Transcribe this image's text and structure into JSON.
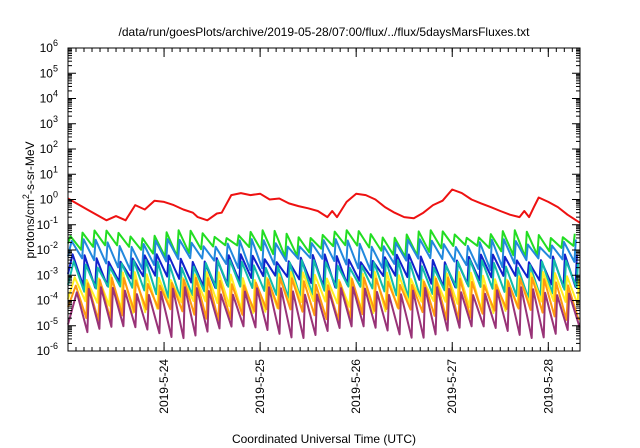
{
  "chart_data": {
    "type": "line",
    "title": "/data/run/goesPlots/archive/2019-05-28/07:00/flux/../flux/5daysMarsFluxes.txt",
    "xlabel": "Coordinated Universal Time (UTC)",
    "ylabel": {
      "prefix": "protons/cm",
      "sup": "2",
      "suffix": "-s-sr-MeV"
    },
    "yscale": "log",
    "ylim_exp": [
      -6,
      6
    ],
    "y_tick_base": "10",
    "y_tick_exponents": [
      "-6",
      "-5",
      "-4",
      "-3",
      "-2",
      "-1",
      "0",
      "1",
      "2",
      "3",
      "4",
      "5",
      "6"
    ],
    "xlim_days": [
      23.0,
      28.33
    ],
    "x_ticks": [
      {
        "label": "2019-5-24",
        "day": 24
      },
      {
        "label": "2019-5-25",
        "day": 25
      },
      {
        "label": "2019-5-26",
        "day": 26
      },
      {
        "label": "2019-5-27",
        "day": 27
      },
      {
        "label": "2019-5-28",
        "day": 28
      }
    ],
    "grid": false,
    "legend": "none",
    "series": [
      {
        "color": "#ee1111",
        "points": [
          [
            23.0,
            1.1
          ],
          [
            23.2,
            0.4
          ],
          [
            23.4,
            0.15
          ],
          [
            23.5,
            0.22
          ],
          [
            23.6,
            0.15
          ],
          [
            23.7,
            0.6
          ],
          [
            23.8,
            0.4
          ],
          [
            23.9,
            0.9
          ],
          [
            24.0,
            0.8
          ],
          [
            24.1,
            0.6
          ],
          [
            24.2,
            0.4
          ],
          [
            24.3,
            0.3
          ],
          [
            24.35,
            0.2
          ],
          [
            24.45,
            0.15
          ],
          [
            24.55,
            0.28
          ],
          [
            24.6,
            0.3
          ],
          [
            24.7,
            1.5
          ],
          [
            24.8,
            1.8
          ],
          [
            24.9,
            1.5
          ],
          [
            25.0,
            1.7
          ],
          [
            25.1,
            1.0
          ],
          [
            25.2,
            1.1
          ],
          [
            25.3,
            0.7
          ],
          [
            25.4,
            0.55
          ],
          [
            25.5,
            0.45
          ],
          [
            25.6,
            0.35
          ],
          [
            25.7,
            0.2
          ],
          [
            25.75,
            0.35
          ],
          [
            25.8,
            0.2
          ],
          [
            25.9,
            0.8
          ],
          [
            26.0,
            1.7
          ],
          [
            26.1,
            1.5
          ],
          [
            26.2,
            1.0
          ],
          [
            26.3,
            0.5
          ],
          [
            26.4,
            0.3
          ],
          [
            26.5,
            0.2
          ],
          [
            26.6,
            0.18
          ],
          [
            26.7,
            0.3
          ],
          [
            26.8,
            0.6
          ],
          [
            26.9,
            0.9
          ],
          [
            27.0,
            2.5
          ],
          [
            27.1,
            1.8
          ],
          [
            27.2,
            1.0
          ],
          [
            27.3,
            0.7
          ],
          [
            27.4,
            0.5
          ],
          [
            27.5,
            0.35
          ],
          [
            27.6,
            0.25
          ],
          [
            27.7,
            0.2
          ],
          [
            27.75,
            0.35
          ],
          [
            27.8,
            0.2
          ],
          [
            27.85,
            0.5
          ],
          [
            27.9,
            1.2
          ],
          [
            28.0,
            0.8
          ],
          [
            28.1,
            0.5
          ],
          [
            28.2,
            0.25
          ],
          [
            28.33,
            0.12
          ]
        ]
      },
      {
        "color": "#22dd22",
        "base": 0.013,
        "peak": 0.045
      },
      {
        "color": "#2288dd",
        "base": 0.004,
        "peak": 0.02
      },
      {
        "color": "#1122cc",
        "base": 0.0008,
        "peak": 0.005
      },
      {
        "color": "#11bbaa",
        "base": 0.0003,
        "peak": 0.003
      },
      {
        "color": "#ffee22",
        "base": 8e-05,
        "peak": 0.001
      },
      {
        "color": "#ff9911",
        "base": 4e-05,
        "peak": 0.0006
      },
      {
        "color": "#993377",
        "base": 8e-06,
        "peak": 0.00025
      }
    ]
  }
}
